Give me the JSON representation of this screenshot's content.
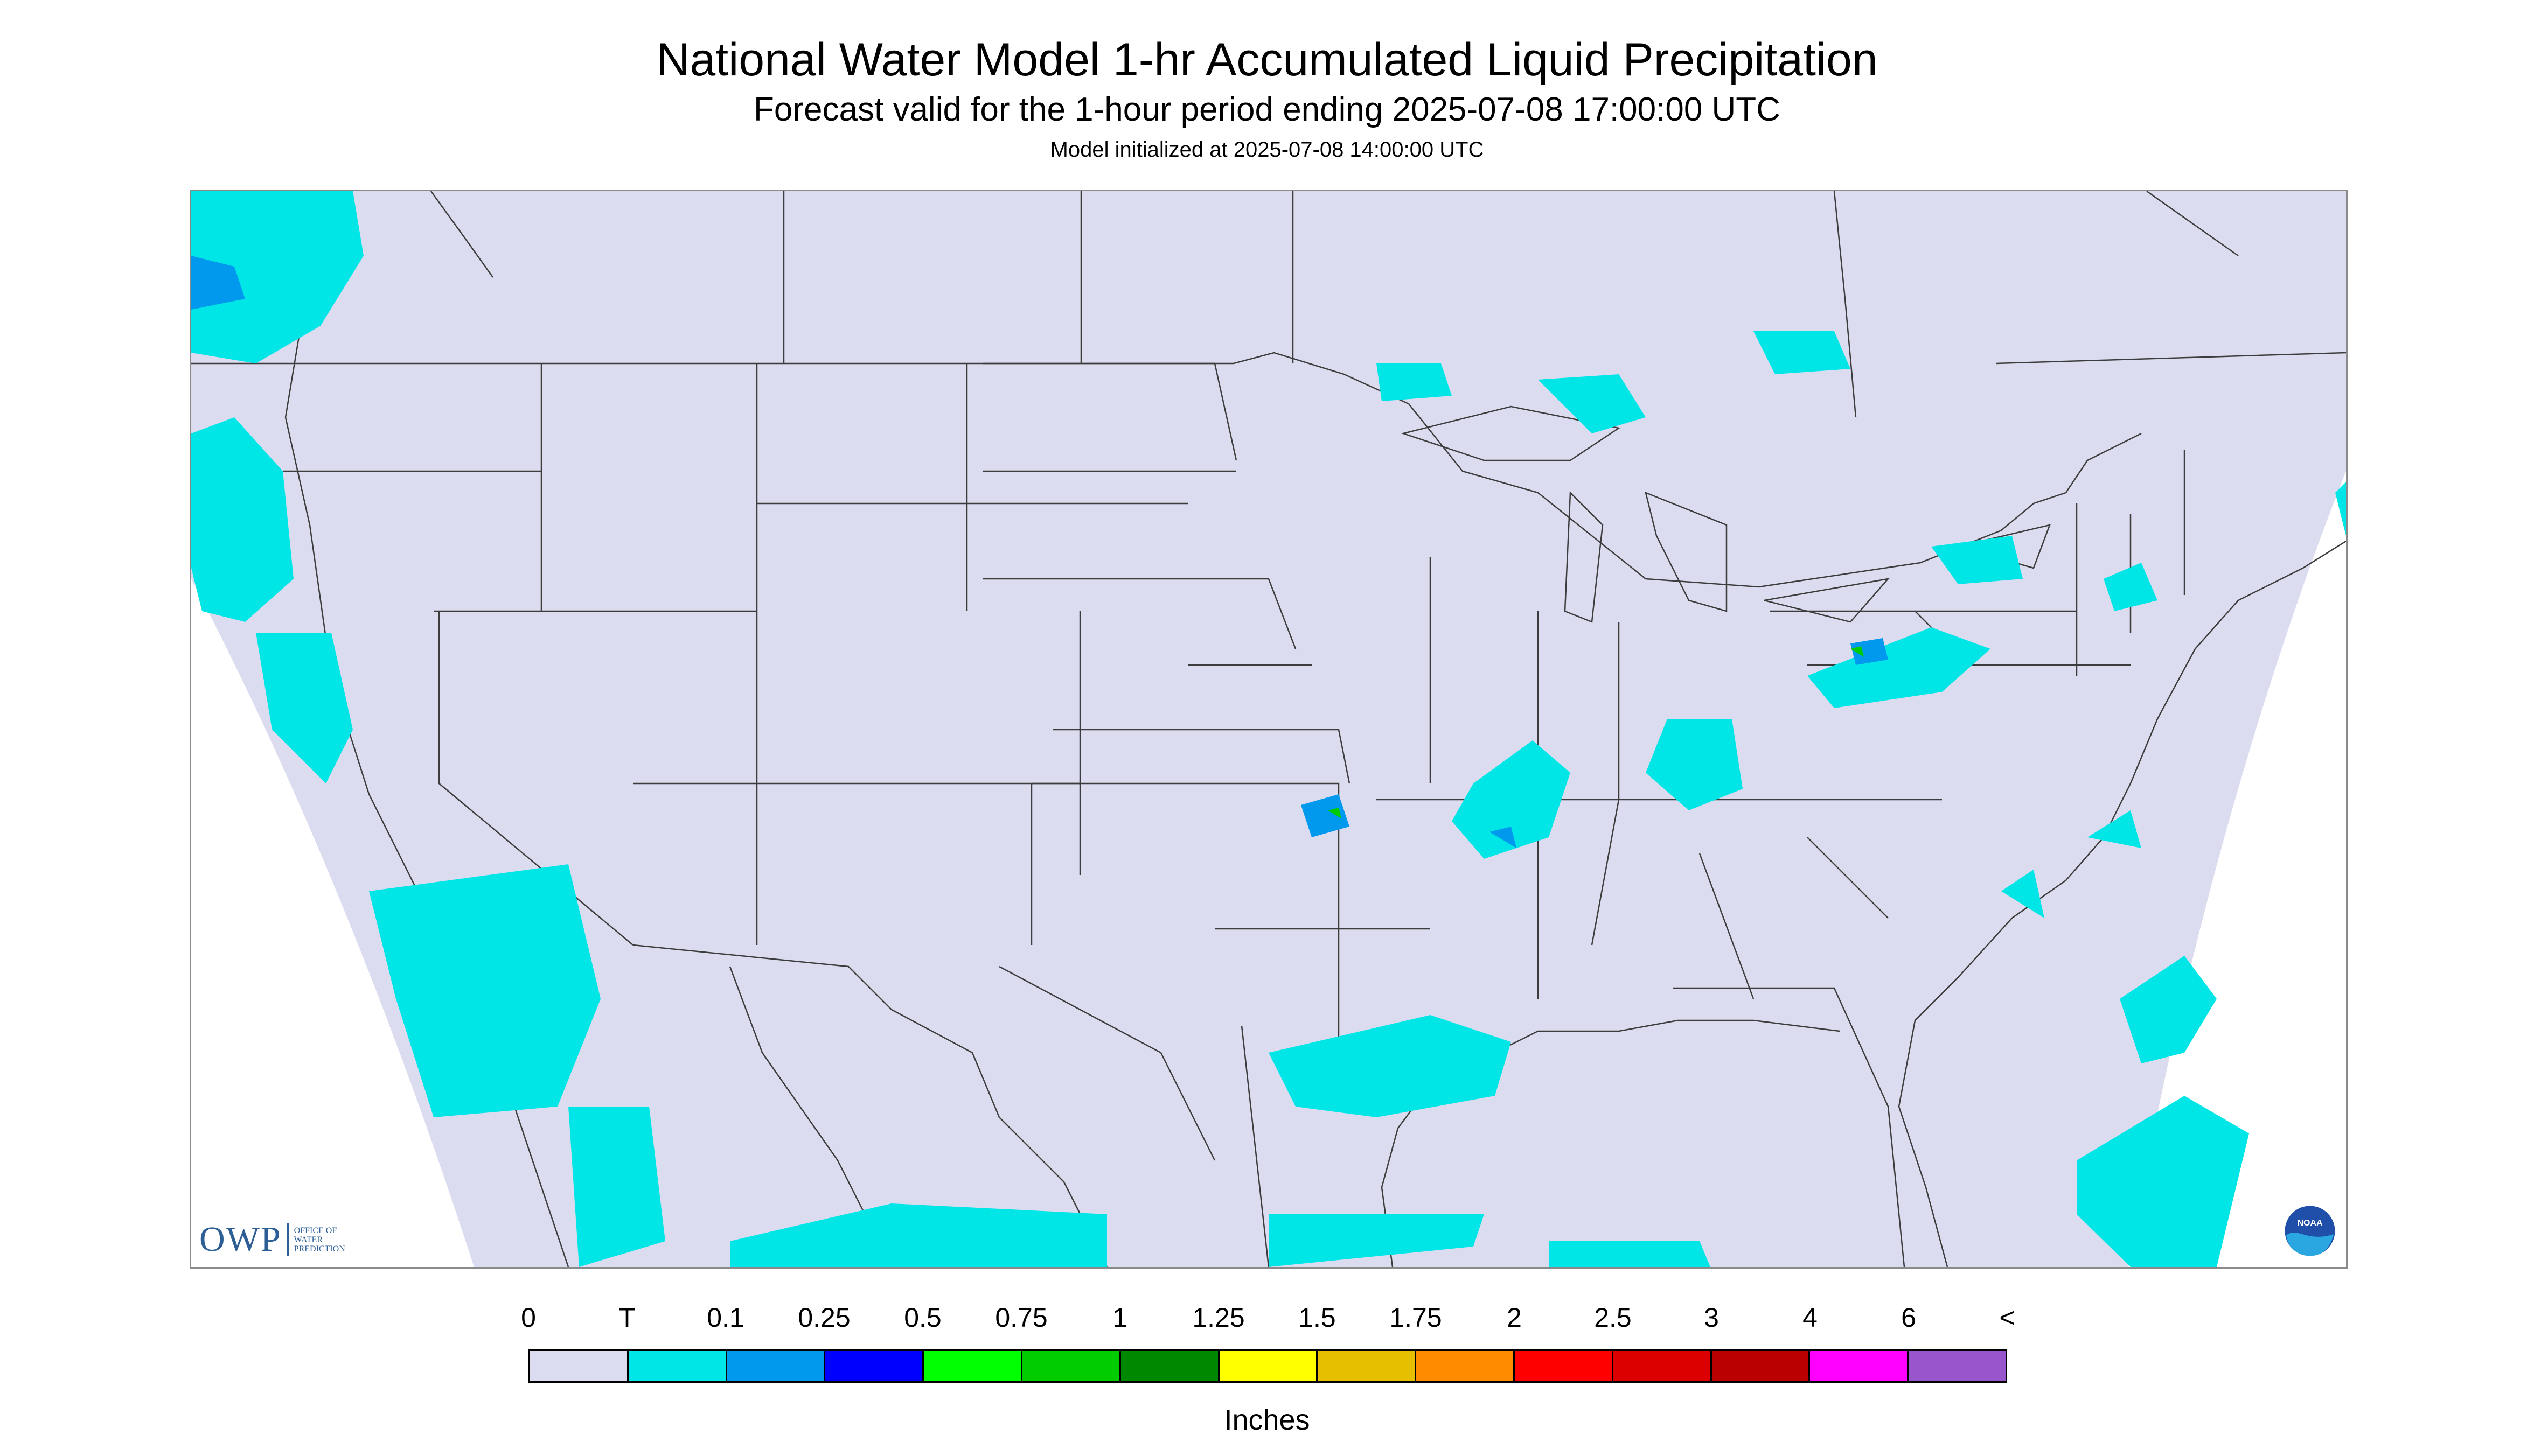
{
  "header": {
    "title": "National Water Model 1-hr Accumulated Liquid Precipitation",
    "subtitle": "Forecast valid for the 1-hour period ending 2025-07-08 17:00:00 UTC",
    "init": "Model initialized at 2025-07-08 14:00:00 UTC"
  },
  "map": {
    "background_color": "#dcdcf0",
    "outside_domain_color": "#ffffff",
    "boundary_color": "#3c3c3c"
  },
  "logos": {
    "owp": {
      "letters": "OWP",
      "small_text": "OFFICE OF\nWATER\nPREDICTION"
    },
    "noaa": {
      "letters": "NOAA"
    }
  },
  "legend": {
    "labels": [
      "0",
      "T",
      "0.1",
      "0.25",
      "0.5",
      "0.75",
      "1",
      "1.25",
      "1.5",
      "1.75",
      "2",
      "2.5",
      "3",
      "4",
      "6",
      "<"
    ],
    "colors": [
      "#dcdcf0",
      "#00e6e6",
      "#0099ee",
      "#0000ff",
      "#00ff00",
      "#00cc00",
      "#008800",
      "#ffff00",
      "#e6bf00",
      "#ff8c00",
      "#ff0000",
      "#dd0000",
      "#bb0000",
      "#ff00ff",
      "#9955cc"
    ],
    "units": "Inches"
  }
}
